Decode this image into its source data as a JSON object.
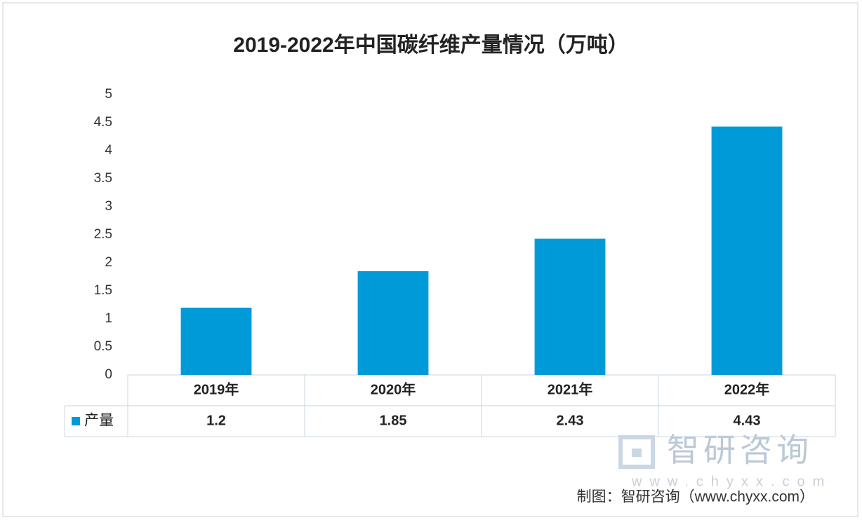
{
  "chart_data": {
    "type": "bar",
    "title": "2019-2022年中国碳纤维产量情况（万吨）",
    "categories": [
      "2019年",
      "2020年",
      "2021年",
      "2022年"
    ],
    "series": [
      {
        "name": "产量",
        "color": "#009ad9",
        "values": [
          1.2,
          1.85,
          2.43,
          4.43
        ]
      }
    ],
    "ylim": [
      0,
      5
    ],
    "yticks": [
      0,
      0.5,
      1,
      1.5,
      2,
      2.5,
      3,
      3.5,
      4,
      4.5,
      5
    ],
    "grid": false,
    "watermark": "智研咨询",
    "watermark_url": "www.chyxx.com",
    "source": "制图：智研咨询（www.chyxx.com）"
  }
}
